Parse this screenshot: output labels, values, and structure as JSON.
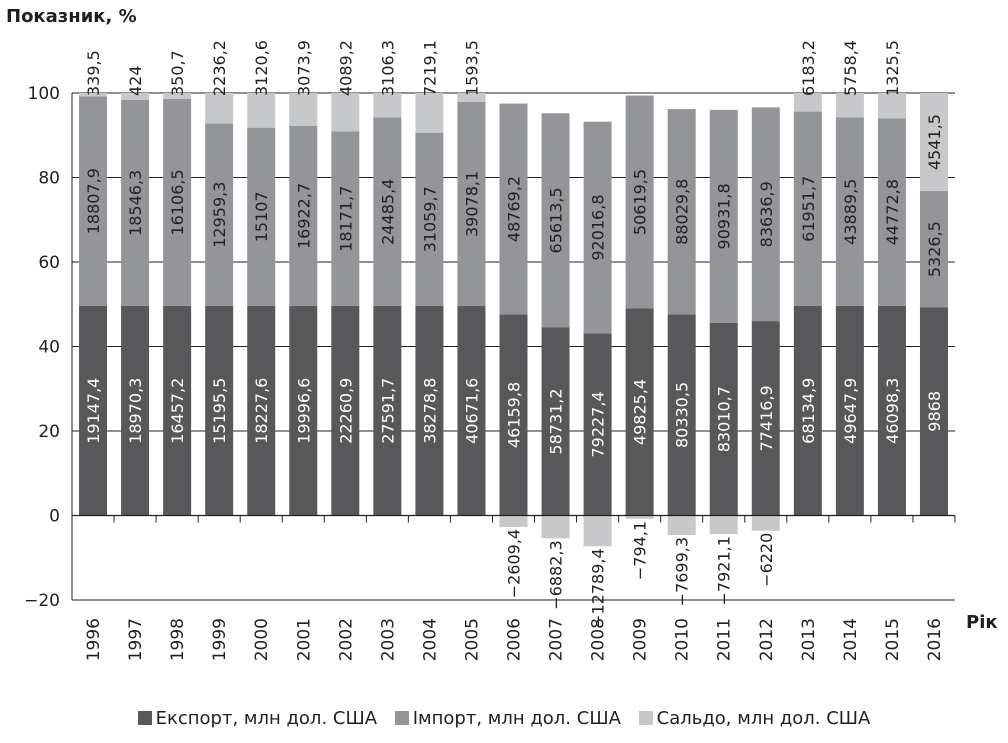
{
  "chart_data": {
    "type": "bar",
    "stacked": true,
    "ylabel": "Показник, %",
    "xlabel": "Рік",
    "ylim": [
      -20,
      100
    ],
    "yticks": [
      -20,
      0,
      20,
      40,
      60,
      80,
      100
    ],
    "grid": "horizontal",
    "legend_position": "bottom",
    "categories": [
      "1996",
      "1997",
      "1998",
      "1999",
      "2000",
      "2001",
      "2002",
      "2003",
      "2004",
      "2005",
      "2006",
      "2007",
      "2008",
      "2009",
      "2010",
      "2011",
      "2012",
      "2013",
      "2014",
      "2015",
      "2016"
    ],
    "series": [
      {
        "name": "Експорт, млн дол. США",
        "color": "#58585a",
        "percent": [
          49.6,
          49.6,
          49.6,
          49.6,
          49.6,
          49.6,
          49.6,
          49.6,
          49.6,
          49.6,
          47.6,
          44.5,
          43.1,
          49.0,
          47.6,
          45.6,
          46.0,
          49.6,
          49.6,
          49.6,
          49.3
        ],
        "labels": [
          "19147,4",
          "18970,3",
          "16457,2",
          "15195,5",
          "18227,6",
          "19996,6",
          "22260,9",
          "27591,7",
          "38278,8",
          "40671,6",
          "46159,8",
          "58731,2",
          "79227,4",
          "49825,4",
          "80330,5",
          "83010,7",
          "77416,9",
          "68134,9",
          "49647,9",
          "46098,3",
          "9868"
        ]
      },
      {
        "name": "Імпорт, млн дол. США",
        "color": "#939598",
        "percent": [
          49.6,
          48.8,
          49.0,
          43.2,
          42.2,
          42.6,
          41.3,
          44.6,
          41.0,
          48.3,
          49.9,
          50.7,
          50.1,
          50.4,
          48.6,
          50.4,
          50.6,
          46.0,
          44.6,
          44.4,
          27.5
        ],
        "labels": [
          "18807,9",
          "18546,3",
          "16106,5",
          "12959,3",
          "15107",
          "16922,7",
          "18171,7",
          "24485,4",
          "31059,7",
          "39078,1",
          "48769,2",
          "65613,5",
          "92016,8",
          "50619,5",
          "88029,8",
          "90931,8",
          "83636,9",
          "61951,7",
          "43889,5",
          "44772,8",
          "5326,5"
        ]
      },
      {
        "name": "Сальдо, млн дол. США",
        "color": "#c6c8ca",
        "percent": [
          0.8,
          1.6,
          1.4,
          7.2,
          8.2,
          7.8,
          9.1,
          5.8,
          9.4,
          2.1,
          -2.7,
          -5.4,
          -7.3,
          -0.8,
          -4.6,
          -4.4,
          -3.6,
          4.4,
          5.8,
          6.0,
          23.2
        ],
        "labels": [
          "339,5",
          "424",
          "350,7",
          "2236,2",
          "3120,6",
          "3073,9",
          "4089,2",
          "3106,3",
          "7219,1",
          "1593,5",
          "−2609,4",
          "−6882,3",
          "−12789,4",
          "−794,1",
          "−7699,3",
          "−7921,1",
          "−6220",
          "6183,2",
          "5758,4",
          "1325,5",
          "4541,5"
        ]
      }
    ]
  }
}
